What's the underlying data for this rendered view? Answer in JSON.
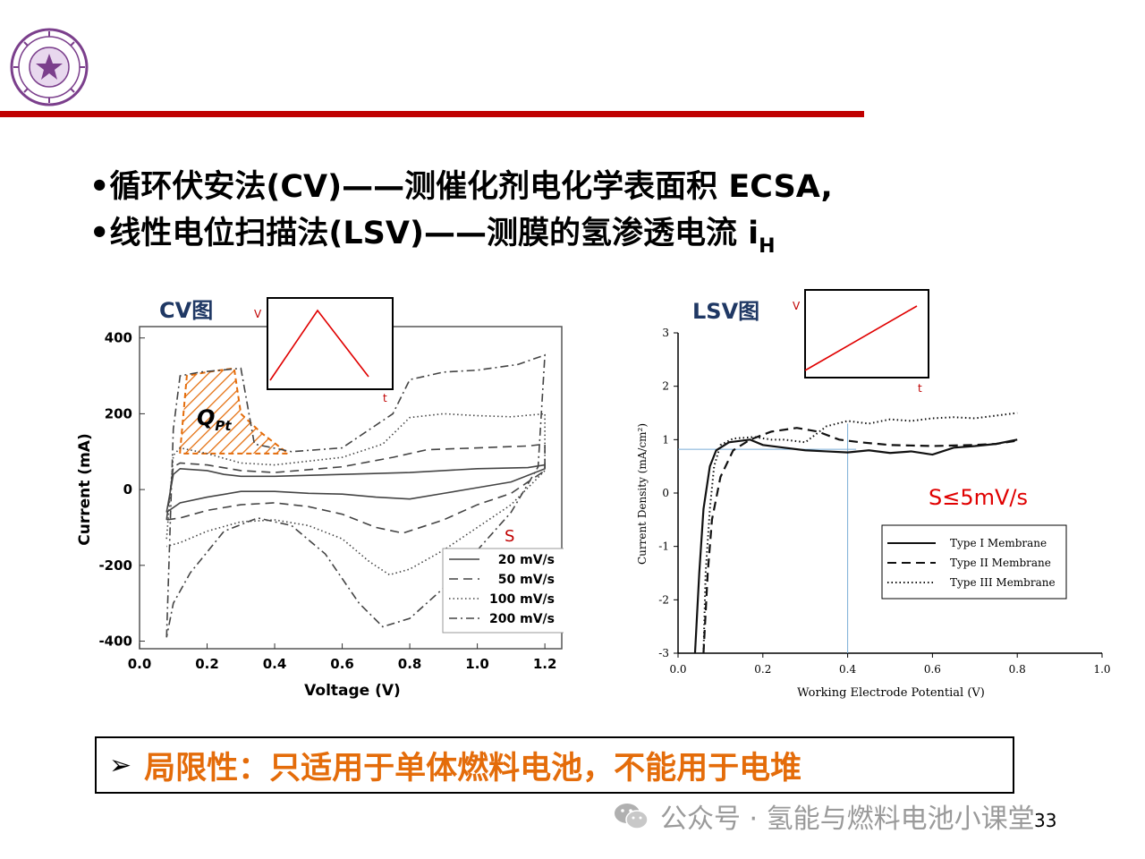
{
  "bullets": [
    {
      "text": "•循环伏安法(CV)——测催化剂电化学表面积 ECSA,"
    },
    {
      "text": "•线性电位扫描法(LSV)——测膜的氢渗透电流 i",
      "sub": "H"
    }
  ],
  "limitation": {
    "arrow": "➢",
    "text": "局限性：只适用于单体燃料电池，不能用于电堆"
  },
  "watermark": "公众号 · 氢能与燃料电池小课堂",
  "page_number": "33",
  "colors": {
    "red_bar": "#c00000",
    "orange": "#e46c0a",
    "logo_purple": "#7b3f8c"
  },
  "chart_data": [
    {
      "type": "line",
      "title": "CV图",
      "xlabel": "Voltage (V)",
      "ylabel": "Current (mA)",
      "xlim": [
        0.0,
        1.25
      ],
      "ylim": [
        -420,
        430
      ],
      "xticks": [
        "0.0",
        "0.2",
        "0.4",
        "0.6",
        "0.8",
        "1.0",
        "1.2"
      ],
      "yticks": [
        "400",
        "200",
        "0",
        "-200",
        "-400"
      ],
      "annotation_q": "Q",
      "annotation_q_sub": "Pt",
      "legend_title": "S",
      "legend_position": "bottom-right",
      "series": [
        {
          "name": "20 mV/s",
          "style": "solid",
          "anodic": [
            [
              0.08,
              -60
            ],
            [
              0.1,
              40
            ],
            [
              0.12,
              55
            ],
            [
              0.2,
              50
            ],
            [
              0.25,
              40
            ],
            [
              0.3,
              35
            ],
            [
              0.4,
              35
            ],
            [
              0.6,
              40
            ],
            [
              0.8,
              45
            ],
            [
              1.0,
              55
            ],
            [
              1.15,
              58
            ],
            [
              1.2,
              65
            ]
          ],
          "cathodic": [
            [
              1.2,
              55
            ],
            [
              1.1,
              20
            ],
            [
              1.0,
              5
            ],
            [
              0.9,
              -10
            ],
            [
              0.8,
              -25
            ],
            [
              0.7,
              -20
            ],
            [
              0.6,
              -12
            ],
            [
              0.5,
              -10
            ],
            [
              0.4,
              -5
            ],
            [
              0.3,
              -5
            ],
            [
              0.2,
              -20
            ],
            [
              0.12,
              -35
            ],
            [
              0.08,
              -60
            ]
          ]
        },
        {
          "name": "50 mV/s",
          "style": "dash",
          "anodic": [
            [
              0.08,
              -80
            ],
            [
              0.1,
              60
            ],
            [
              0.12,
              70
            ],
            [
              0.2,
              65
            ],
            [
              0.3,
              50
            ],
            [
              0.4,
              45
            ],
            [
              0.6,
              60
            ],
            [
              0.75,
              85
            ],
            [
              0.85,
              105
            ],
            [
              1.0,
              110
            ],
            [
              1.15,
              115
            ],
            [
              1.2,
              120
            ]
          ],
          "cathodic": [
            [
              1.2,
              50
            ],
            [
              1.1,
              -10
            ],
            [
              1.0,
              -40
            ],
            [
              0.9,
              -80
            ],
            [
              0.78,
              -115
            ],
            [
              0.7,
              -100
            ],
            [
              0.6,
              -65
            ],
            [
              0.5,
              -45
            ],
            [
              0.4,
              -35
            ],
            [
              0.3,
              -40
            ],
            [
              0.2,
              -55
            ],
            [
              0.12,
              -75
            ],
            [
              0.08,
              -80
            ]
          ]
        },
        {
          "name": "100 mV/s",
          "style": "dot",
          "anodic": [
            [
              0.08,
              -130
            ],
            [
              0.1,
              90
            ],
            [
              0.12,
              110
            ],
            [
              0.2,
              95
            ],
            [
              0.3,
              70
            ],
            [
              0.4,
              65
            ],
            [
              0.6,
              85
            ],
            [
              0.72,
              120
            ],
            [
              0.8,
              190
            ],
            [
              0.9,
              200
            ],
            [
              1.0,
              195
            ],
            [
              1.1,
              192
            ],
            [
              1.2,
              200
            ]
          ],
          "cathodic": [
            [
              1.2,
              50
            ],
            [
              1.1,
              -40
            ],
            [
              1.0,
              -100
            ],
            [
              0.9,
              -160
            ],
            [
              0.8,
              -210
            ],
            [
              0.74,
              -225
            ],
            [
              0.68,
              -190
            ],
            [
              0.6,
              -130
            ],
            [
              0.5,
              -95
            ],
            [
              0.4,
              -80
            ],
            [
              0.3,
              -85
            ],
            [
              0.2,
              -110
            ],
            [
              0.12,
              -140
            ],
            [
              0.08,
              -150
            ]
          ]
        },
        {
          "name": "200 mV/s",
          "style": "dashdot",
          "anodic": [
            [
              0.08,
              -390
            ],
            [
              0.1,
              160
            ],
            [
              0.12,
              300
            ],
            [
              0.18,
              310
            ],
            [
              0.24,
              315
            ],
            [
              0.3,
              320
            ],
            [
              0.34,
              120
            ],
            [
              0.45,
              100
            ],
            [
              0.6,
              110
            ],
            [
              0.75,
              200
            ],
            [
              0.8,
              290
            ],
            [
              0.9,
              310
            ],
            [
              1.0,
              315
            ],
            [
              1.12,
              330
            ],
            [
              1.2,
              355
            ]
          ],
          "cathodic": [
            [
              1.2,
              355
            ],
            [
              1.18,
              60
            ],
            [
              1.1,
              -60
            ],
            [
              1.0,
              -160
            ],
            [
              0.9,
              -260
            ],
            [
              0.8,
              -340
            ],
            [
              0.72,
              -362
            ],
            [
              0.65,
              -300
            ],
            [
              0.55,
              -170
            ],
            [
              0.45,
              -95
            ],
            [
              0.35,
              -75
            ],
            [
              0.25,
              -110
            ],
            [
              0.15,
              -220
            ],
            [
              0.1,
              -300
            ],
            [
              0.08,
              -390
            ]
          ]
        }
      ]
    },
    {
      "type": "line",
      "title": "LSV图",
      "xlabel": "Working Electrode Potential (V)",
      "ylabel": "Current Density (mA/cm²)",
      "xlim": [
        0.0,
        1.0
      ],
      "ylim": [
        -3,
        3
      ],
      "xticks": [
        "0.0",
        "0.2",
        "0.4",
        "0.6",
        "0.8",
        "1.0"
      ],
      "yticks": [
        "3",
        "2",
        "1",
        "0",
        "-1",
        "-2",
        "-3"
      ],
      "annotation": "S≤5mV/s",
      "reference_lines": {
        "x": 0.4,
        "y": 0.82
      },
      "legend_position": "bottom-right",
      "series": [
        {
          "name": "Type I Membrane",
          "style": "solid",
          "points": [
            [
              0.04,
              -3
            ],
            [
              0.05,
              -1.5
            ],
            [
              0.06,
              -0.3
            ],
            [
              0.075,
              0.5
            ],
            [
              0.09,
              0.8
            ],
            [
              0.12,
              0.95
            ],
            [
              0.17,
              1.0
            ],
            [
              0.2,
              0.9
            ],
            [
              0.25,
              0.85
            ],
            [
              0.3,
              0.8
            ],
            [
              0.35,
              0.78
            ],
            [
              0.4,
              0.76
            ],
            [
              0.45,
              0.8
            ],
            [
              0.5,
              0.75
            ],
            [
              0.55,
              0.78
            ],
            [
              0.6,
              0.72
            ],
            [
              0.65,
              0.85
            ],
            [
              0.7,
              0.88
            ],
            [
              0.75,
              0.92
            ],
            [
              0.8,
              1.0
            ]
          ]
        },
        {
          "name": "Type II Membrane",
          "style": "dash",
          "points": [
            [
              0.06,
              -3
            ],
            [
              0.07,
              -1.5
            ],
            [
              0.08,
              -0.5
            ],
            [
              0.1,
              0.3
            ],
            [
              0.13,
              0.8
            ],
            [
              0.17,
              1.0
            ],
            [
              0.22,
              1.15
            ],
            [
              0.28,
              1.22
            ],
            [
              0.33,
              1.15
            ],
            [
              0.38,
              1.0
            ],
            [
              0.43,
              0.95
            ],
            [
              0.5,
              0.9
            ],
            [
              0.6,
              0.88
            ],
            [
              0.7,
              0.9
            ],
            [
              0.75,
              0.92
            ],
            [
              0.8,
              0.98
            ]
          ]
        },
        {
          "name": "Type III Membrane",
          "style": "dot",
          "points": [
            [
              0.06,
              -3
            ],
            [
              0.065,
              -1.5
            ],
            [
              0.075,
              -0.3
            ],
            [
              0.085,
              0.5
            ],
            [
              0.1,
              0.9
            ],
            [
              0.13,
              1.02
            ],
            [
              0.18,
              1.05
            ],
            [
              0.22,
              1.0
            ],
            [
              0.25,
              1.0
            ],
            [
              0.3,
              0.95
            ],
            [
              0.35,
              1.25
            ],
            [
              0.4,
              1.35
            ],
            [
              0.45,
              1.3
            ],
            [
              0.5,
              1.38
            ],
            [
              0.55,
              1.35
            ],
            [
              0.6,
              1.4
            ],
            [
              0.65,
              1.42
            ],
            [
              0.7,
              1.4
            ],
            [
              0.75,
              1.45
            ],
            [
              0.8,
              1.5
            ]
          ]
        }
      ]
    }
  ],
  "insets": [
    {
      "ylabel": "V",
      "xlabel": "t",
      "shape": "triangle"
    },
    {
      "ylabel": "V",
      "xlabel": "t",
      "shape": "ramp"
    }
  ]
}
